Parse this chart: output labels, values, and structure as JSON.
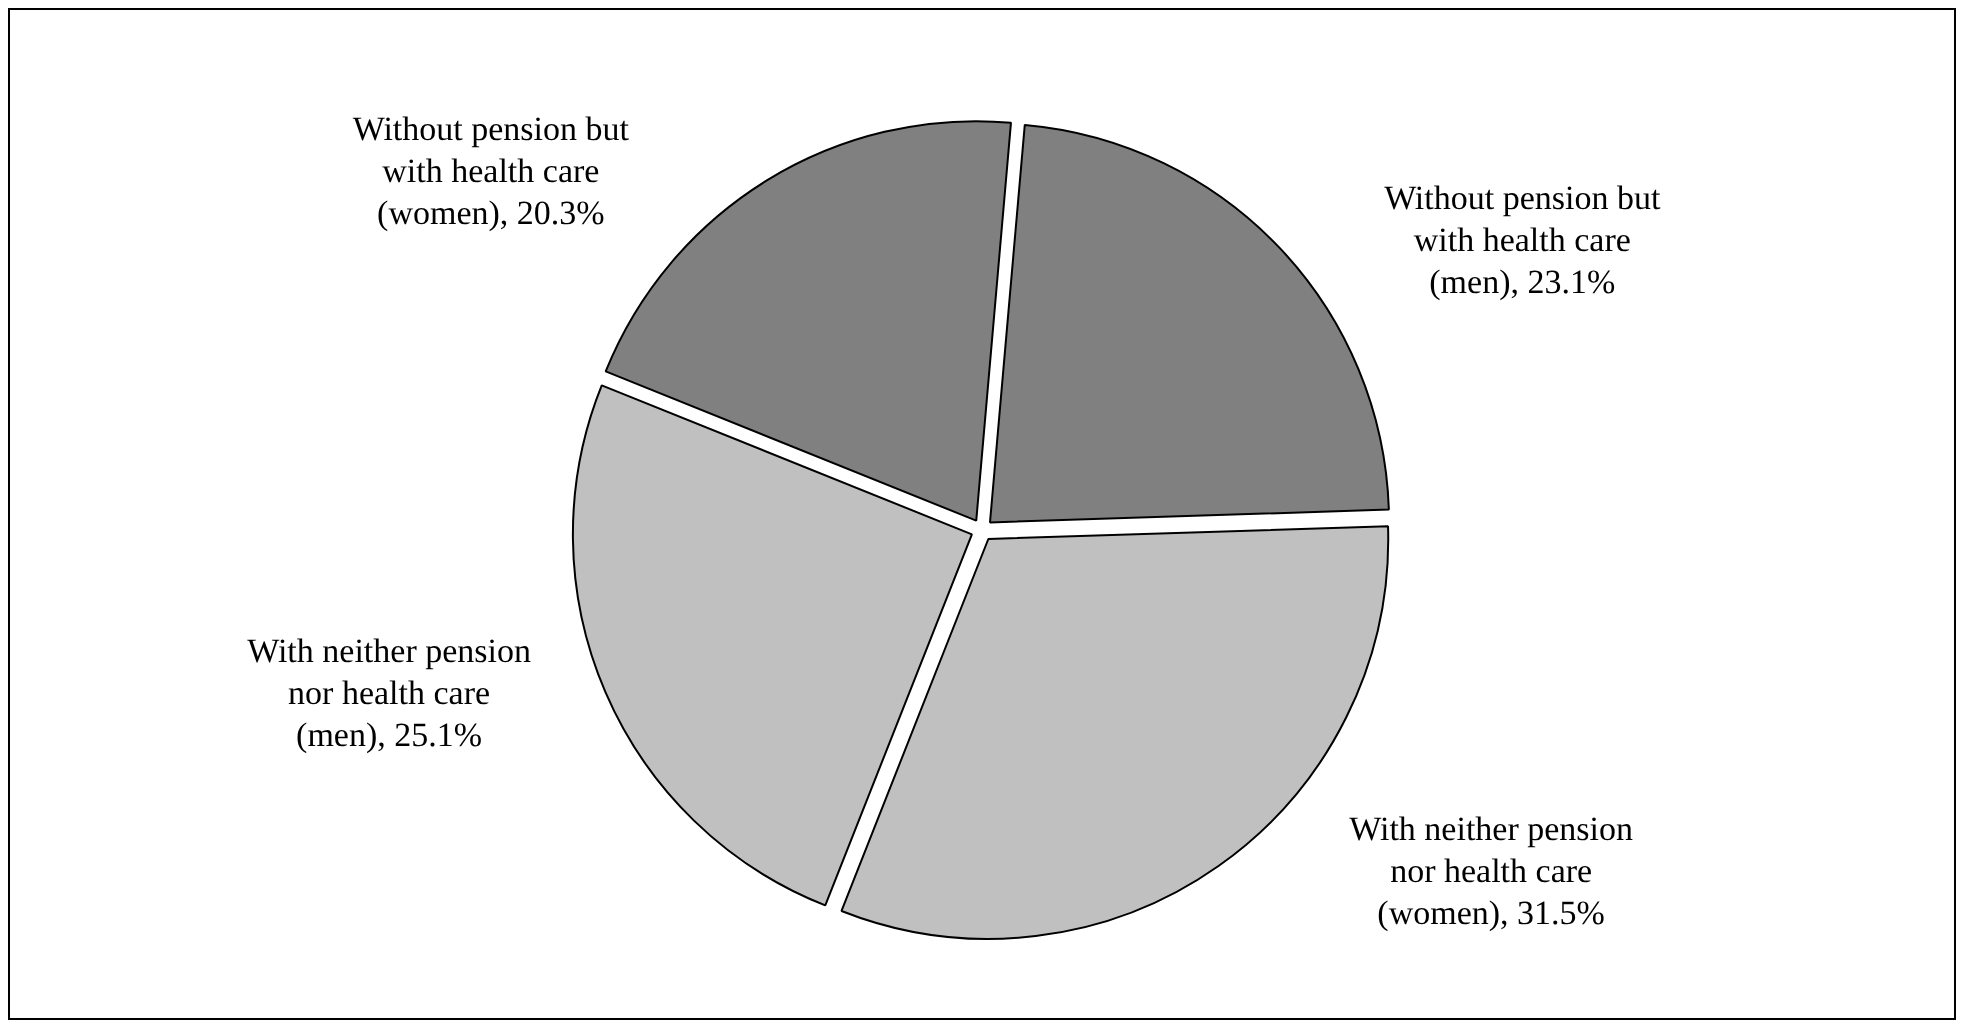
{
  "chart_data": {
    "type": "pie",
    "categories": [
      "Without pension but with health care (men)",
      "With neither pension nor health care (women)",
      "With neither pension nor health care (men)",
      "Without pension but with health care (women)"
    ],
    "values": [
      23.1,
      31.5,
      25.1,
      20.3
    ],
    "value_labels": [
      "23.1%",
      "31.5%",
      "25.1%",
      "20.3%"
    ],
    "colors": [
      "#808080",
      "#c0c0c0",
      "#c0c0c0",
      "#808080"
    ],
    "legend": false
  }
}
